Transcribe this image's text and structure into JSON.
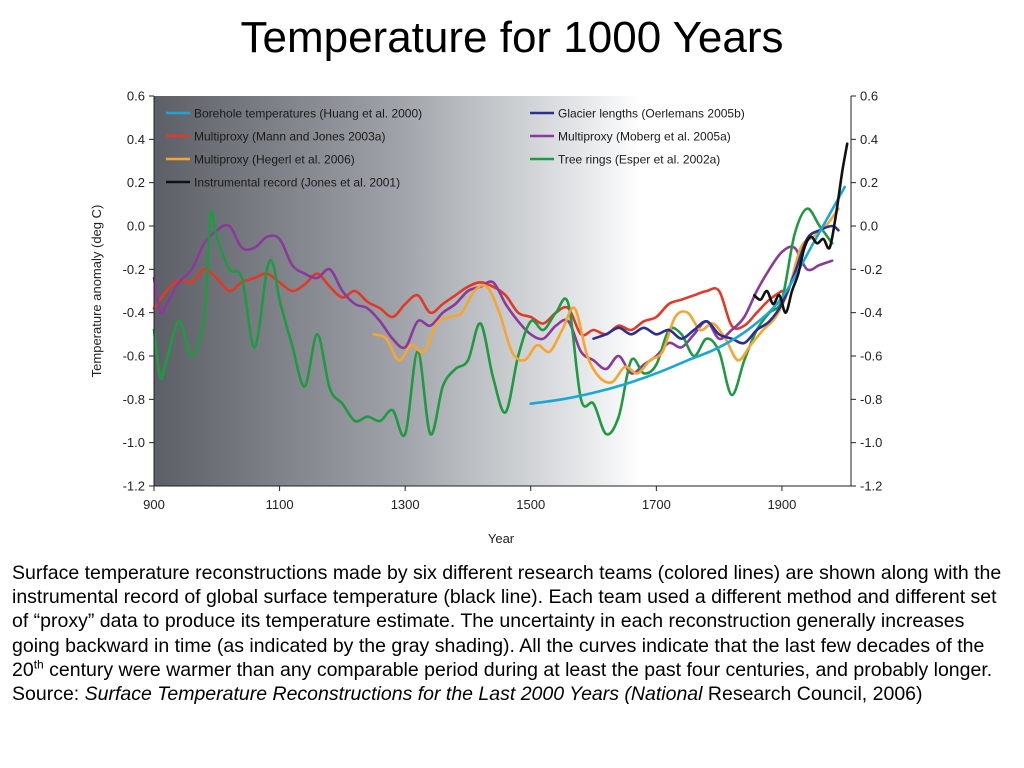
{
  "slide": {
    "title": "Temperature for 1000 Years",
    "caption": {
      "part1": "Surface temperature reconstructions made by six different research teams (colored lines) are shown along with the instrumental record of global surface temperature (black line). Each team used a different method and different set of “proxy” data to produce its temperature estimate. The uncertainty in each reconstruction generally increases going backward in time (as indicated by the gray shading). All the curves indicate that the last few decades of the 20",
      "sup": "th",
      "part2": " century were warmer than any comparable period during at least the past four centuries, and probably longer. Source: ",
      "source_italic": "Surface Temperature Reconstructions for the Last 2000 Years (National",
      "part3": " Research Council, 2006)"
    }
  },
  "chart_data": {
    "type": "line",
    "title": "",
    "xlabel": "Year",
    "ylabel": "Temperature anomaly (deg C)",
    "xlim": [
      900,
      2010
    ],
    "ylim": [
      -1.2,
      0.6
    ],
    "x_ticks": [
      900,
      1100,
      1300,
      1500,
      1700,
      1900
    ],
    "x_tick_labels": [
      "900",
      "1100",
      "1300",
      "1500",
      "1700",
      "1900"
    ],
    "y_ticks": [
      0.6,
      0.4,
      0.2,
      0.0,
      -0.2,
      -0.4,
      -0.6,
      -0.8,
      -1.0,
      -1.2
    ],
    "y_left_labels": [
      "0.6",
      "0.4",
      "0.2",
      "0.0",
      "-0.2",
      "-0.4",
      "-0.6",
      "-0.8",
      "-1.0",
      "-1.2"
    ],
    "y_right_labels": [
      "0.6",
      "0.4",
      "0.2",
      "0.0",
      "-0.2",
      "-0.4",
      "-0.6",
      "-0.8",
      "-1.0",
      "-1.2"
    ],
    "background": "gray gradient (uncertainty shading), dark at 900 fading to white near 1600",
    "grid": false,
    "legend_placement": "top (two columns)",
    "series": [
      {
        "name": "Borehole temperatures (Huang et al. 2000)",
        "color": "#1aa7d8",
        "x": [
          1500,
          1550,
          1600,
          1650,
          1700,
          1750,
          1800,
          1850,
          1900,
          1950,
          2000
        ],
        "y": [
          -0.82,
          -0.8,
          -0.77,
          -0.73,
          -0.68,
          -0.62,
          -0.56,
          -0.47,
          -0.33,
          -0.08,
          0.18
        ]
      },
      {
        "name": "Multiproxy (Mann and Jones 2003a)",
        "color": "#e03a27",
        "x": [
          900,
          920,
          940,
          960,
          980,
          1000,
          1020,
          1040,
          1060,
          1080,
          1100,
          1120,
          1140,
          1160,
          1180,
          1200,
          1220,
          1240,
          1260,
          1280,
          1300,
          1320,
          1340,
          1360,
          1380,
          1400,
          1420,
          1440,
          1460,
          1480,
          1500,
          1520,
          1540,
          1560,
          1580,
          1600,
          1620,
          1640,
          1660,
          1680,
          1700,
          1720,
          1740,
          1760,
          1780,
          1800,
          1820,
          1840,
          1860,
          1880,
          1900
        ],
        "y": [
          -0.38,
          -0.3,
          -0.25,
          -0.26,
          -0.2,
          -0.24,
          -0.3,
          -0.26,
          -0.24,
          -0.22,
          -0.26,
          -0.3,
          -0.27,
          -0.22,
          -0.28,
          -0.33,
          -0.3,
          -0.35,
          -0.38,
          -0.42,
          -0.36,
          -0.32,
          -0.4,
          -0.36,
          -0.32,
          -0.28,
          -0.26,
          -0.28,
          -0.32,
          -0.4,
          -0.42,
          -0.45,
          -0.4,
          -0.38,
          -0.5,
          -0.48,
          -0.5,
          -0.46,
          -0.48,
          -0.44,
          -0.42,
          -0.36,
          -0.34,
          -0.32,
          -0.3,
          -0.3,
          -0.46,
          -0.46,
          -0.4,
          -0.34,
          -0.3
        ]
      },
      {
        "name": "Multiproxy (Hegerl et al. 2006)",
        "color": "#f7a531",
        "x": [
          1250,
          1270,
          1290,
          1310,
          1330,
          1350,
          1370,
          1390,
          1410,
          1430,
          1450,
          1470,
          1490,
          1510,
          1530,
          1550,
          1570,
          1590,
          1610,
          1630,
          1650,
          1670,
          1690,
          1710,
          1730,
          1750,
          1770,
          1790,
          1810,
          1830,
          1850,
          1870,
          1890,
          1910,
          1930,
          1950,
          1970,
          1990
        ],
        "y": [
          -0.5,
          -0.52,
          -0.62,
          -0.55,
          -0.58,
          -0.45,
          -0.42,
          -0.4,
          -0.3,
          -0.28,
          -0.4,
          -0.58,
          -0.62,
          -0.55,
          -0.58,
          -0.48,
          -0.38,
          -0.6,
          -0.7,
          -0.72,
          -0.65,
          -0.68,
          -0.62,
          -0.58,
          -0.42,
          -0.4,
          -0.48,
          -0.45,
          -0.52,
          -0.62,
          -0.55,
          -0.48,
          -0.42,
          -0.3,
          -0.1,
          -0.05,
          0.0,
          0.08
        ]
      },
      {
        "name": "Instrumental record (Jones et al. 2001)",
        "color": "#111111",
        "x": [
          1856,
          1866,
          1876,
          1886,
          1896,
          1906,
          1916,
          1926,
          1936,
          1946,
          1956,
          1966,
          1976,
          1986,
          1996,
          2004
        ],
        "y": [
          -0.32,
          -0.34,
          -0.3,
          -0.36,
          -0.32,
          -0.4,
          -0.3,
          -0.22,
          -0.1,
          -0.05,
          -0.08,
          -0.06,
          -0.1,
          0.05,
          0.25,
          0.38
        ]
      },
      {
        "name": "Glacier lengths (Oerlemans 2005b)",
        "color": "#2b2f8f",
        "x": [
          1600,
          1620,
          1640,
          1660,
          1680,
          1700,
          1720,
          1740,
          1760,
          1780,
          1800,
          1820,
          1840,
          1860,
          1880,
          1900,
          1920,
          1940,
          1960,
          1980,
          1990
        ],
        "y": [
          -0.52,
          -0.5,
          -0.47,
          -0.5,
          -0.47,
          -0.5,
          -0.48,
          -0.52,
          -0.48,
          -0.44,
          -0.5,
          -0.52,
          -0.54,
          -0.48,
          -0.44,
          -0.36,
          -0.22,
          -0.06,
          -0.02,
          0.0,
          -0.02
        ]
      },
      {
        "name": "Multiproxy (Moberg et al. 2005a)",
        "color": "#8a3a9a",
        "x": [
          900,
          910,
          920,
          940,
          960,
          980,
          1000,
          1020,
          1040,
          1060,
          1080,
          1100,
          1120,
          1140,
          1160,
          1180,
          1200,
          1220,
          1240,
          1260,
          1280,
          1300,
          1320,
          1340,
          1360,
          1380,
          1400,
          1420,
          1440,
          1460,
          1480,
          1500,
          1520,
          1540,
          1560,
          1580,
          1600,
          1620,
          1640,
          1660,
          1680,
          1700,
          1720,
          1740,
          1760,
          1780,
          1800,
          1820,
          1840,
          1860,
          1880,
          1900,
          1920,
          1940,
          1960,
          1980
        ],
        "y": [
          -0.24,
          -0.4,
          -0.36,
          -0.26,
          -0.2,
          -0.08,
          -0.02,
          0.0,
          -0.1,
          -0.1,
          -0.05,
          -0.06,
          -0.18,
          -0.22,
          -0.24,
          -0.2,
          -0.3,
          -0.36,
          -0.38,
          -0.44,
          -0.52,
          -0.56,
          -0.44,
          -0.46,
          -0.4,
          -0.36,
          -0.3,
          -0.28,
          -0.26,
          -0.36,
          -0.44,
          -0.5,
          -0.52,
          -0.46,
          -0.44,
          -0.58,
          -0.62,
          -0.66,
          -0.6,
          -0.68,
          -0.64,
          -0.6,
          -0.54,
          -0.56,
          -0.5,
          -0.44,
          -0.52,
          -0.48,
          -0.42,
          -0.3,
          -0.2,
          -0.12,
          -0.1,
          -0.2,
          -0.18,
          -0.16
        ]
      },
      {
        "name": "Tree rings (Esper et al. 2002a)",
        "color": "#1f9a43",
        "x": [
          900,
          910,
          920,
          940,
          960,
          980,
          990,
          1000,
          1020,
          1040,
          1060,
          1080,
          1090,
          1100,
          1120,
          1140,
          1160,
          1180,
          1200,
          1220,
          1240,
          1260,
          1280,
          1300,
          1320,
          1340,
          1360,
          1380,
          1400,
          1420,
          1440,
          1460,
          1480,
          1500,
          1520,
          1540,
          1560,
          1580,
          1600,
          1620,
          1640,
          1660,
          1680,
          1700,
          1720,
          1740,
          1760,
          1780,
          1800,
          1820,
          1840,
          1860,
          1880,
          1900,
          1920,
          1940,
          1960,
          1980
        ],
        "y": [
          -0.48,
          -0.7,
          -0.62,
          -0.44,
          -0.6,
          -0.42,
          0.05,
          -0.05,
          -0.2,
          -0.24,
          -0.56,
          -0.2,
          -0.18,
          -0.34,
          -0.55,
          -0.74,
          -0.5,
          -0.75,
          -0.82,
          -0.9,
          -0.88,
          -0.9,
          -0.85,
          -0.96,
          -0.58,
          -0.96,
          -0.74,
          -0.66,
          -0.62,
          -0.45,
          -0.7,
          -0.86,
          -0.6,
          -0.44,
          -0.48,
          -0.4,
          -0.36,
          -0.8,
          -0.82,
          -0.96,
          -0.88,
          -0.62,
          -0.68,
          -0.64,
          -0.48,
          -0.5,
          -0.6,
          -0.52,
          -0.58,
          -0.78,
          -0.62,
          -0.48,
          -0.4,
          -0.34,
          -0.04,
          0.08,
          0.0,
          -0.08
        ]
      }
    ],
    "legend_layout": [
      {
        "column": 0,
        "series_index": 0
      },
      {
        "column": 0,
        "series_index": 1
      },
      {
        "column": 0,
        "series_index": 2
      },
      {
        "column": 0,
        "series_index": 3
      },
      {
        "column": 1,
        "series_index": 4
      },
      {
        "column": 1,
        "series_index": 5
      },
      {
        "column": 1,
        "series_index": 6
      }
    ]
  }
}
